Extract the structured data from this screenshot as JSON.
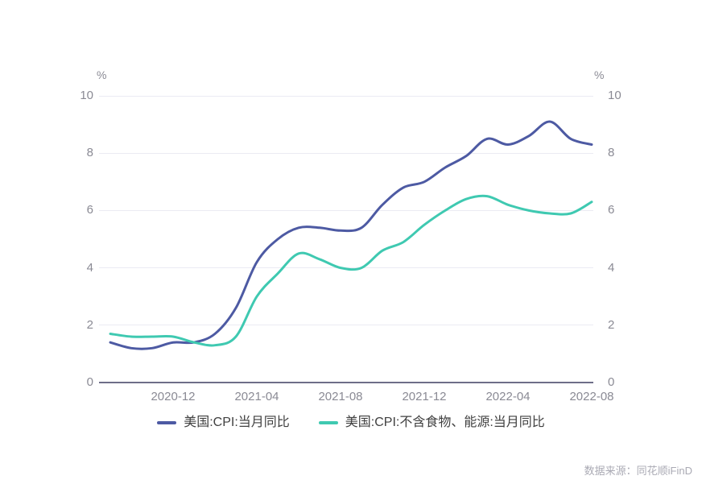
{
  "chart_data": {
    "type": "line",
    "title": "",
    "unit_label_left": "%",
    "unit_label_right": "%",
    "grid": "horizontal",
    "legend_position": "bottom",
    "ylim": [
      0,
      10
    ],
    "y_ticks": [
      0,
      2,
      4,
      6,
      8,
      10
    ],
    "x": [
      "2020-09",
      "2020-10",
      "2020-11",
      "2020-12",
      "2021-01",
      "2021-02",
      "2021-03",
      "2021-04",
      "2021-05",
      "2021-06",
      "2021-07",
      "2021-08",
      "2021-09",
      "2021-10",
      "2021-11",
      "2021-12",
      "2022-01",
      "2022-02",
      "2022-03",
      "2022-04",
      "2022-05",
      "2022-06",
      "2022-07",
      "2022-08"
    ],
    "x_tick_labels": [
      "2020-12",
      "2021-04",
      "2021-08",
      "2021-12",
      "2022-04",
      "2022-08"
    ],
    "series": [
      {
        "name": "美国:CPI:当月同比",
        "color": "#4d5aa3",
        "values": [
          1.4,
          1.2,
          1.2,
          1.4,
          1.4,
          1.7,
          2.6,
          4.2,
          5.0,
          5.4,
          5.4,
          5.3,
          5.4,
          6.2,
          6.8,
          7.0,
          7.5,
          7.9,
          8.5,
          8.3,
          8.6,
          9.1,
          8.5,
          8.3
        ]
      },
      {
        "name": "美国:CPI:不含食物、能源:当月同比",
        "color": "#3fc9b1",
        "values": [
          1.7,
          1.6,
          1.6,
          1.6,
          1.4,
          1.3,
          1.6,
          3.0,
          3.8,
          4.5,
          4.3,
          4.0,
          4.0,
          4.6,
          4.9,
          5.5,
          6.0,
          6.4,
          6.5,
          6.2,
          6.0,
          5.9,
          5.9,
          6.3
        ]
      }
    ]
  },
  "footer": {
    "source": "数据来源：同花顺iFinD"
  }
}
